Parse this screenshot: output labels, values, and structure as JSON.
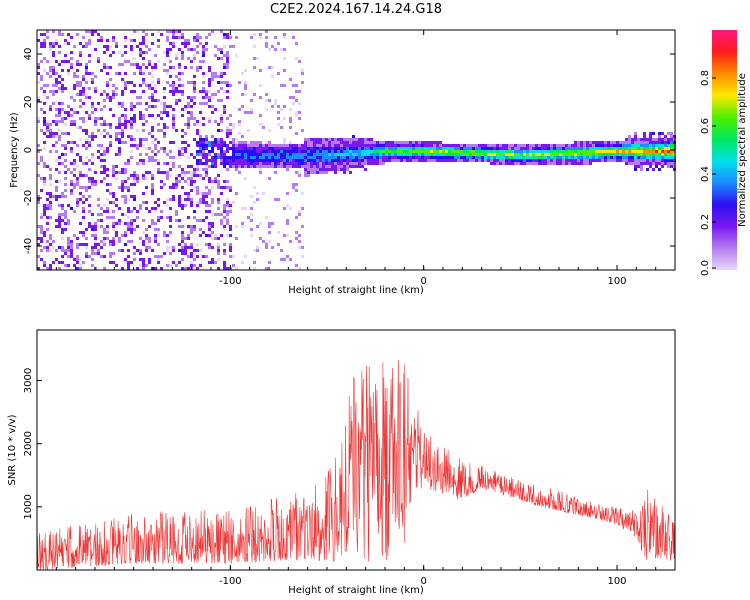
{
  "title": "C2E2.2024.167.14.24.G18",
  "chart_data": [
    {
      "type": "heatmap",
      "xlabel": "Height of straight line (km)",
      "ylabel": "Frequency (Hz)",
      "xlim": [
        -200,
        130
      ],
      "ylim": [
        -50,
        50
      ],
      "xticks": [
        -100,
        0,
        100
      ],
      "yticks": [
        -40,
        -20,
        0,
        20,
        40
      ],
      "colorbar": {
        "label": "Normalized spectral amplitude",
        "range": [
          0,
          1
        ],
        "ticks": [
          "0.0",
          "0.2",
          "0.4",
          "0.6",
          "0.8"
        ],
        "colormap": [
          "#e8d8f8",
          "#b57cf0",
          "#7a18f0",
          "#2a10f0",
          "#1c8cff",
          "#00e0e8",
          "#00e85a",
          "#50ef00",
          "#ffe800",
          "#ff8c00",
          "#ff1a1a",
          "#ff1a80"
        ]
      },
      "ridge_profile": [
        {
          "x": -200,
          "f": 0,
          "peak": 0.05,
          "spread": 48
        },
        {
          "x": -115,
          "f": 0,
          "peak": 0.1,
          "spread": 45
        },
        {
          "x": -100,
          "f": -1.5,
          "peak": 0.25,
          "spread": 6
        },
        {
          "x": -60,
          "f": -2,
          "peak": 0.35,
          "spread": 5
        },
        {
          "x": -20,
          "f": 0,
          "peak": 0.55,
          "spread": 3
        },
        {
          "x": 0,
          "f": 0,
          "peak": 0.7,
          "spread": 2.5
        },
        {
          "x": 50,
          "f": -1.5,
          "peak": 0.7,
          "spread": 2.5
        },
        {
          "x": 100,
          "f": 0,
          "peak": 0.75,
          "spread": 3
        },
        {
          "x": 130,
          "f": 0,
          "peak": 0.85,
          "spread": 4
        }
      ]
    },
    {
      "type": "line",
      "xlabel": "Height of straight line (km)",
      "ylabel": "SNR (10 * v/v)",
      "xlim": [
        -200,
        130
      ],
      "ylim": [
        0,
        3800
      ],
      "xticks": [
        -100,
        0,
        100
      ],
      "yticks": [
        1000,
        2000,
        3000
      ],
      "color": "#ee3333",
      "envelope": [
        {
          "x": -200,
          "lo": 0,
          "hi": 600
        },
        {
          "x": -150,
          "lo": 100,
          "hi": 900
        },
        {
          "x": -100,
          "lo": 100,
          "hi": 1000
        },
        {
          "x": -75,
          "lo": 150,
          "hi": 1200
        },
        {
          "x": -50,
          "lo": 150,
          "hi": 1500
        },
        {
          "x": -35,
          "lo": 100,
          "hi": 3200
        },
        {
          "x": -20,
          "lo": 100,
          "hi": 3300
        },
        {
          "x": -10,
          "lo": 400,
          "hi": 3500
        },
        {
          "x": 0,
          "lo": 1300,
          "hi": 2200
        },
        {
          "x": 20,
          "lo": 1100,
          "hi": 1750
        },
        {
          "x": 30,
          "lo": 1300,
          "hi": 1650
        },
        {
          "x": 60,
          "lo": 1000,
          "hi": 1350
        },
        {
          "x": 90,
          "lo": 800,
          "hi": 1050
        },
        {
          "x": 108,
          "lo": 600,
          "hi": 950
        },
        {
          "x": 115,
          "lo": 150,
          "hi": 1300
        },
        {
          "x": 130,
          "lo": 150,
          "hi": 1100
        }
      ]
    }
  ]
}
